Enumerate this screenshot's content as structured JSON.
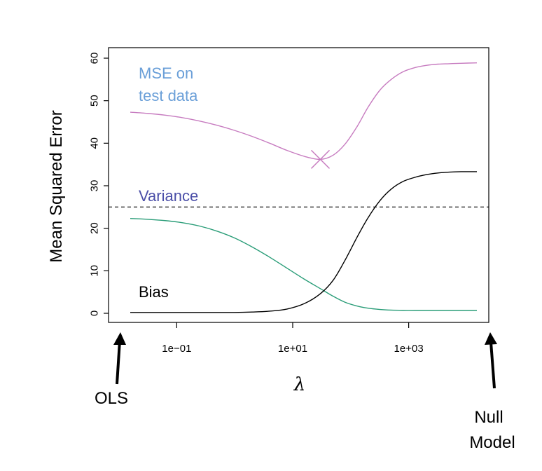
{
  "chart_data": {
    "type": "line",
    "xscale": "log",
    "xlabel": "λ",
    "ylabel": "Mean Squared Error",
    "xlim": [
      0.01,
      30000
    ],
    "ylim": [
      0,
      60
    ],
    "xticks": [
      {
        "value": 0.1,
        "label": "1e−01"
      },
      {
        "value": 10,
        "label": "1e+01"
      },
      {
        "value": 1000,
        "label": "1e+03"
      }
    ],
    "yticks": [
      0,
      10,
      20,
      30,
      40,
      50,
      60
    ],
    "grid": false,
    "x": [
      0.0158,
      0.0316,
      0.0631,
      0.126,
      0.251,
      0.501,
      1,
      2,
      4,
      8,
      16,
      30,
      50,
      80,
      130,
      200,
      320,
      500,
      800,
      1300,
      2000,
      3200,
      5000,
      8000,
      15000
    ],
    "series": [
      {
        "name": "MSE on test data",
        "color": "#c77cc0",
        "values": [
          47.3,
          47.0,
          46.6,
          46.0,
          45.2,
          44.2,
          43.0,
          41.6,
          40.0,
          38.3,
          36.9,
          36.2,
          37.2,
          39.8,
          44.0,
          48.5,
          52.5,
          55.0,
          56.8,
          57.8,
          58.3,
          58.6,
          58.7,
          58.8,
          58.9
        ]
      },
      {
        "name": "Variance",
        "color": "#2a9d78",
        "values": [
          22.3,
          22.1,
          21.8,
          21.3,
          20.5,
          19.3,
          17.7,
          15.6,
          13.2,
          10.6,
          8.0,
          5.8,
          4.0,
          2.6,
          1.7,
          1.2,
          0.9,
          0.75,
          0.7,
          0.7,
          0.7,
          0.7,
          0.7,
          0.7,
          0.7
        ]
      },
      {
        "name": "Bias",
        "color": "#000000",
        "values": [
          0.2,
          0.2,
          0.2,
          0.2,
          0.2,
          0.2,
          0.2,
          0.3,
          0.5,
          1.0,
          2.3,
          4.6,
          7.8,
          12.5,
          18.0,
          22.5,
          26.5,
          29.2,
          31.0,
          32.0,
          32.6,
          33.0,
          33.2,
          33.3,
          33.3
        ]
      }
    ],
    "reference_line": {
      "y": 25,
      "style": "dashed",
      "color": "#000000"
    },
    "minimum_marker": {
      "x": 30,
      "y": 36.2,
      "symbol": "×",
      "color": "#c77cc0"
    },
    "annotations": [
      {
        "text": "MSE on",
        "color": "#6a9fd8"
      },
      {
        "text": "test data",
        "color": "#6a9fd8"
      },
      {
        "text": "Variance",
        "color": "#4b4fa8"
      },
      {
        "text": "Bias",
        "color": "#000000"
      }
    ],
    "arrows": [
      {
        "label": "OLS"
      },
      {
        "label_lines": [
          "Null",
          "Model"
        ]
      }
    ]
  }
}
